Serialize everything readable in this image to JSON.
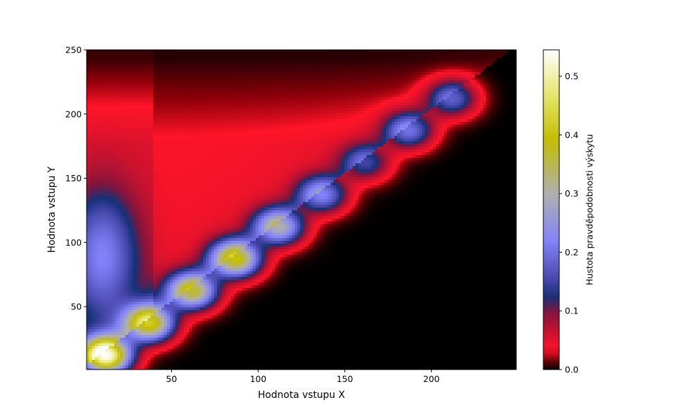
{
  "chart_data": {
    "type": "heatmap",
    "title": "",
    "xlabel": "Hodnota vstupu X",
    "ylabel": "Hodnota vstupu Y",
    "xlim": [
      1,
      249
    ],
    "ylim": [
      1,
      250
    ],
    "x_ticks": [
      50,
      100,
      150,
      200
    ],
    "y_ticks": [
      50,
      100,
      150,
      200,
      250
    ],
    "grid": false,
    "colormap": "gist_stern",
    "colorbar": {
      "label": "Hustota pravděpodobnosti výskytu",
      "range": [
        0.0,
        0.545
      ],
      "ticks": [
        "0.0",
        "0.1",
        "0.2",
        "0.3",
        "0.4",
        "0.5"
      ],
      "tick_values": [
        0.0,
        0.1,
        0.2,
        0.3,
        0.4,
        0.5
      ]
    },
    "peaks": [
      {
        "x": 12,
        "y": 12,
        "value": 0.55
      },
      {
        "x": 37,
        "y": 37,
        "value": 0.42
      },
      {
        "x": 62,
        "y": 62,
        "value": 0.37
      },
      {
        "x": 87,
        "y": 87,
        "value": 0.4
      },
      {
        "x": 112,
        "y": 112,
        "value": 0.3
      },
      {
        "x": 137,
        "y": 137,
        "value": 0.22
      },
      {
        "x": 162,
        "y": 162,
        "value": 0.15
      },
      {
        "x": 187,
        "y": 187,
        "value": 0.2
      },
      {
        "x": 212,
        "y": 212,
        "value": 0.18
      }
    ],
    "regions": [
      {
        "description_value": "left band near x≈10, y 40–140",
        "value": 0.17
      },
      {
        "description_value": "upper-left triangle above diagonal",
        "value": 0.04
      },
      {
        "description_value": "below diagonal",
        "value": 0.0
      }
    ]
  }
}
